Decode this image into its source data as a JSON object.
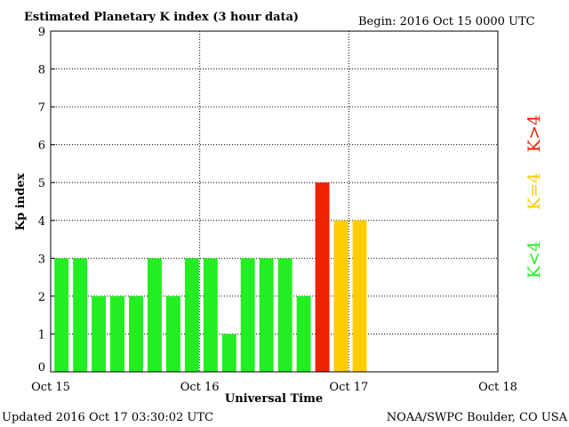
{
  "chart_data": {
    "type": "bar",
    "title": "Estimated Planetary K index (3 hour data)",
    "subtitle": "Begin:  2016 Oct 15 0000 UTC",
    "y_label": "Kp index",
    "x_label": "Universal Time",
    "footer_left": "Updated 2016 Oct 17 03:30:02 UTC",
    "footer_right": "NOAA/SWPC Boulder, CO USA",
    "x": [
      0,
      3,
      6,
      9,
      12,
      15,
      18,
      21,
      24,
      27,
      30,
      33,
      36,
      39,
      42,
      45,
      48
    ],
    "values": [
      3,
      3,
      2,
      2,
      2,
      3,
      2,
      3,
      3,
      1,
      3,
      3,
      3,
      2,
      5,
      4,
      4
    ],
    "colors": [
      "#22ee22",
      "#22ee22",
      "#22ee22",
      "#22ee22",
      "#22ee22",
      "#22ee22",
      "#22ee22",
      "#22ee22",
      "#22ee22",
      "#22ee22",
      "#22ee22",
      "#22ee22",
      "#22ee22",
      "#22ee22",
      "#ee2200",
      "#ffcc00",
      "#ffcc00"
    ],
    "xlim": [
      0,
      72
    ],
    "xticks": [
      {
        "value": 0,
        "label": "Oct 15"
      },
      {
        "value": 24,
        "label": "Oct 16"
      },
      {
        "value": 48,
        "label": "Oct 17"
      },
      {
        "value": 72,
        "label": "Oct 18"
      }
    ],
    "ylim": [
      0,
      9
    ],
    "yticks": [
      0,
      1,
      2,
      3,
      4,
      5,
      6,
      7,
      8,
      9
    ],
    "grid": true,
    "legend": [
      {
        "name": "K<4",
        "color": "#22ee22"
      },
      {
        "name": "K=4",
        "color": "#ffcc00"
      },
      {
        "name": "K>4",
        "color": "#ee2200"
      }
    ]
  }
}
